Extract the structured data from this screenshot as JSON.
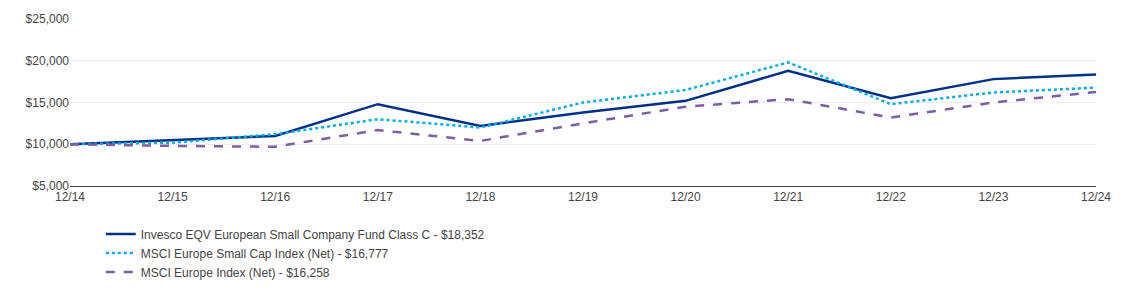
{
  "chart_data": {
    "type": "line",
    "categories": [
      "12/14",
      "12/15",
      "12/16",
      "12/17",
      "12/18",
      "12/19",
      "12/20",
      "12/21",
      "12/22",
      "12/23",
      "12/24"
    ],
    "series": [
      {
        "name": "Invesco EQV European Small Company Fund Class C - $18,352",
        "color": "#003087",
        "line_style": "solid",
        "values": [
          10000,
          10500,
          11000,
          14800,
          12200,
          13800,
          15200,
          18800,
          15500,
          17800,
          18352
        ]
      },
      {
        "name": "MSCI Europe Small Cap Index (Net) - $16,777",
        "color": "#00AEEF",
        "line_style": "dotted",
        "values": [
          10000,
          10200,
          11200,
          13000,
          12000,
          15000,
          16500,
          19800,
          14800,
          16200,
          16777
        ]
      },
      {
        "name": "MSCI Europe Index (Net) - $16,258",
        "color": "#7B5EA7",
        "line_style": "dashed",
        "values": [
          10000,
          9800,
          9700,
          11700,
          10400,
          12500,
          14500,
          15400,
          13200,
          15000,
          16258
        ]
      }
    ],
    "ylim": [
      5000,
      25000
    ],
    "yticks": [
      {
        "value": 5000,
        "label": "$5,000"
      },
      {
        "value": 10000,
        "label": "$10,000"
      },
      {
        "value": 15000,
        "label": "$15,000"
      },
      {
        "value": 20000,
        "label": "$20,000"
      },
      {
        "value": 25000,
        "label": "$25,000"
      }
    ],
    "grid": true,
    "legend": "bottom"
  }
}
